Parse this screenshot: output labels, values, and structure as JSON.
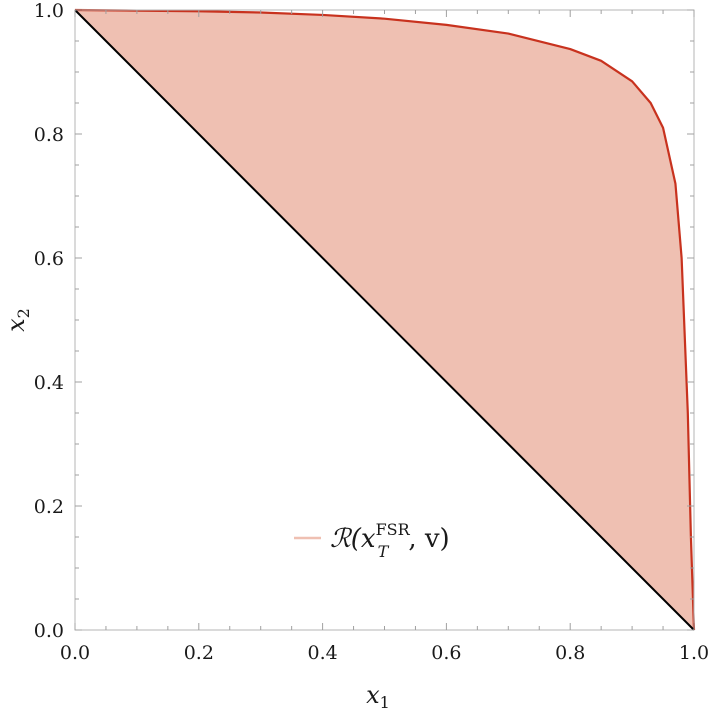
{
  "chart_data": {
    "type": "area",
    "xlabel": "x",
    "xlabel_sub": "1",
    "ylabel": "x",
    "ylabel_sub": "2",
    "xlim": [
      0.0,
      1.0
    ],
    "ylim": [
      0.0,
      1.0
    ],
    "x_ticks": [
      "0.0",
      "0.2",
      "0.4",
      "0.6",
      "0.8",
      "1.0"
    ],
    "y_ticks": [
      "0.0",
      "0.2",
      "0.4",
      "0.6",
      "0.8",
      "1.0"
    ],
    "grid": false,
    "legend_position": "bottom-center",
    "legend": {
      "main": "ℛ(x",
      "sup": "FSR",
      "sub": "T",
      "rest": ", v)"
    },
    "series": [
      {
        "name": "ℛ(x_T^FSR, v)",
        "upper_boundary": {
          "x": [
            0.0,
            0.1,
            0.2,
            0.3,
            0.4,
            0.5,
            0.6,
            0.7,
            0.8,
            0.85,
            0.9,
            0.93,
            0.95,
            0.97,
            0.98,
            0.99,
            0.995,
            1.0
          ],
          "y": [
            1.0,
            0.999,
            0.998,
            0.996,
            0.992,
            0.986,
            0.976,
            0.962,
            0.937,
            0.918,
            0.885,
            0.85,
            0.81,
            0.72,
            0.6,
            0.35,
            0.15,
            0.0
          ]
        },
        "lower_boundary": {
          "x": [
            0.0,
            1.0
          ],
          "y": [
            1.0,
            0.0
          ]
        }
      }
    ],
    "colors": {
      "fill": "#efc0b2",
      "upper_line": "#c8321e",
      "lower_line": "#000000",
      "legend_swatch": "#efc0b2"
    }
  }
}
